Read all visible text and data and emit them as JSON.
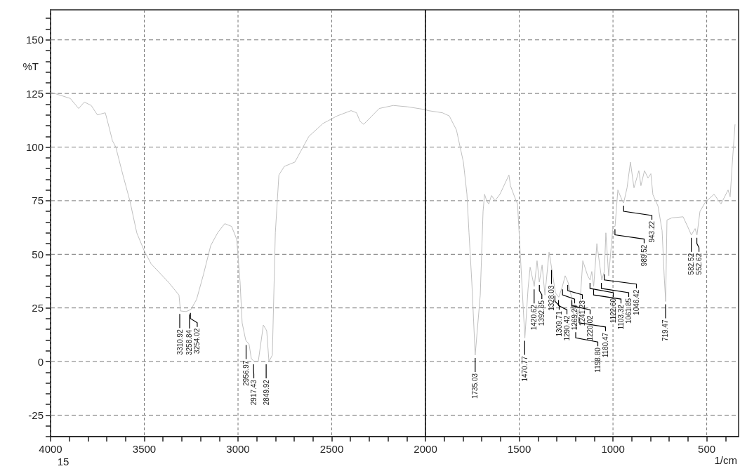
{
  "chart_data": {
    "type": "line",
    "xlabel": "1/cm",
    "ylabel": "%T",
    "xlim": [
      4000,
      330
    ],
    "xticks": [
      4000,
      3500,
      3000,
      2500,
      2000,
      1500,
      1000,
      500
    ],
    "ylim": [
      -35,
      164
    ],
    "yticks": [
      -25,
      0,
      25,
      50,
      75,
      100,
      125,
      150
    ],
    "grid": true,
    "marker": "none",
    "line_style": "solid",
    "ref_lines": [
      {
        "axis": "x",
        "value": 2000,
        "color": "#000000",
        "line_style": "solid"
      }
    ],
    "series": [
      {
        "color": "#c0c0c0",
        "x": [
          4000,
          3895,
          3850,
          3820,
          3783,
          3750,
          3708,
          3690,
          3670,
          3652,
          3614,
          3577,
          3540,
          3502,
          3464,
          3371,
          3315,
          3307,
          3277,
          3251,
          3221,
          3184,
          3146,
          3109,
          3071,
          3034,
          3007,
          2989,
          2978,
          2959,
          2941,
          2929,
          2914,
          2892,
          2865,
          2847,
          2835,
          2817,
          2801,
          2782,
          2753,
          2697,
          2622,
          2547,
          2472,
          2397,
          2368,
          2349,
          2330,
          2303,
          2247,
          2172,
          2097,
          2003,
          1985,
          1910,
          1873,
          1835,
          1798,
          1779,
          1768,
          1753,
          1735,
          1708,
          1693,
          1685,
          1674,
          1663,
          1648,
          1629,
          1603,
          1555,
          1547,
          1517,
          1509,
          1470,
          1453,
          1442,
          1420,
          1405,
          1393,
          1378,
          1363,
          1341,
          1328,
          1307,
          1289,
          1270,
          1255,
          1240,
          1221,
          1199,
          1187,
          1180,
          1161,
          1135,
          1122,
          1113,
          1103,
          1086,
          1060,
          1046,
          1038,
          1023,
          1000,
          989,
          974,
          948,
          943,
          925,
          907,
          888,
          862,
          851,
          832,
          813,
          798,
          787,
          760,
          738,
          727,
          719,
          716,
          712,
          686,
          626,
          600,
          582,
          562,
          552,
          536,
          506,
          461,
          424,
          386,
          375,
          364,
          349
        ],
        "values": [
          125.6,
          122.7,
          118,
          121,
          119.4,
          115,
          116,
          110,
          103,
          100,
          87,
          75,
          60,
          52,
          45.6,
          37,
          31,
          23.6,
          23.3,
          24.3,
          29,
          40.7,
          54,
          60,
          64.3,
          63,
          57,
          37,
          18,
          10,
          8,
          1.3,
          0,
          0,
          17,
          14.4,
          0,
          3,
          60,
          87,
          91,
          93,
          105,
          111,
          114.5,
          117,
          116,
          112,
          110.6,
          113,
          118,
          119.4,
          118.8,
          117.5,
          117,
          116,
          114.5,
          108,
          93,
          78,
          60,
          37,
          3,
          31,
          70,
          78,
          75,
          73.5,
          77.4,
          75,
          78,
          87,
          82,
          75,
          73.5,
          11,
          34,
          44,
          35,
          47,
          37,
          45,
          31,
          51,
          44,
          32,
          30,
          35,
          40,
          37,
          30,
          15,
          24,
          22,
          47,
          40,
          38,
          42,
          35,
          55,
          38,
          42,
          60,
          40,
          63,
          63,
          80,
          74.5,
          74,
          81,
          93,
          81,
          89,
          82,
          89,
          85.6,
          87.6,
          77.8,
          72.5,
          61,
          40,
          28,
          45,
          66,
          67,
          67.5,
          62.6,
          59,
          62,
          59,
          70,
          74.5,
          78,
          73.5,
          80,
          76.8,
          92,
          110.6
        ]
      }
    ],
    "annotations": [
      "15",
      {
        "text": "3310.92",
        "x": 3310.92,
        "y": 23.5
      },
      {
        "text": "3258.84",
        "x": 3258.84,
        "y": 23.3
      },
      {
        "text": "3254.02",
        "x": 3254.02,
        "y": 24
      },
      {
        "text": "2956.97",
        "x": 2956.97,
        "y": 9
      },
      {
        "text": "2917.43",
        "x": 2917.43,
        "y": 0
      },
      {
        "text": "2849.92",
        "x": 2849.92,
        "y": 0
      },
      {
        "text": "1735.03",
        "x": 1735.03,
        "y": 3
      },
      {
        "text": "1470.77",
        "x": 1470.77,
        "y": 11
      },
      {
        "text": "1420.62",
        "x": 1420.62,
        "y": 35
      },
      {
        "text": "1392.65",
        "x": 1392.65,
        "y": 37
      },
      {
        "text": "1328.03",
        "x": 1328.03,
        "y": 44
      },
      {
        "text": "1309.71",
        "x": 1309.71,
        "y": 32
      },
      {
        "text": "1290.42",
        "x": 1290.42,
        "y": 30
      },
      {
        "text": "1269.20",
        "x": 1269.2,
        "y": 35
      },
      {
        "text": "1241.23",
        "x": 1241.23,
        "y": 37
      },
      {
        "text": "1220.02",
        "x": 1220.02,
        "y": 30
      },
      {
        "text": "1198.80",
        "x": 1198.8,
        "y": 15
      },
      {
        "text": "1180.47",
        "x": 1180.47,
        "y": 22
      },
      {
        "text": "1122.60",
        "x": 1122.6,
        "y": 38
      },
      {
        "text": "1103.32",
        "x": 1103.32,
        "y": 35
      },
      {
        "text": "1061.85",
        "x": 1061.85,
        "y": 38
      },
      {
        "text": "1046.42",
        "x": 1046.42,
        "y": 42
      },
      {
        "text": "989.52",
        "x": 989.52,
        "y": 63
      },
      {
        "text": "943.22",
        "x": 943.22,
        "y": 74
      },
      {
        "text": "719.47",
        "x": 719.47,
        "y": 28
      },
      {
        "text": "582.52",
        "x": 582.52,
        "y": 59
      },
      {
        "text": "552.62",
        "x": 552.62,
        "y": 59
      }
    ]
  }
}
